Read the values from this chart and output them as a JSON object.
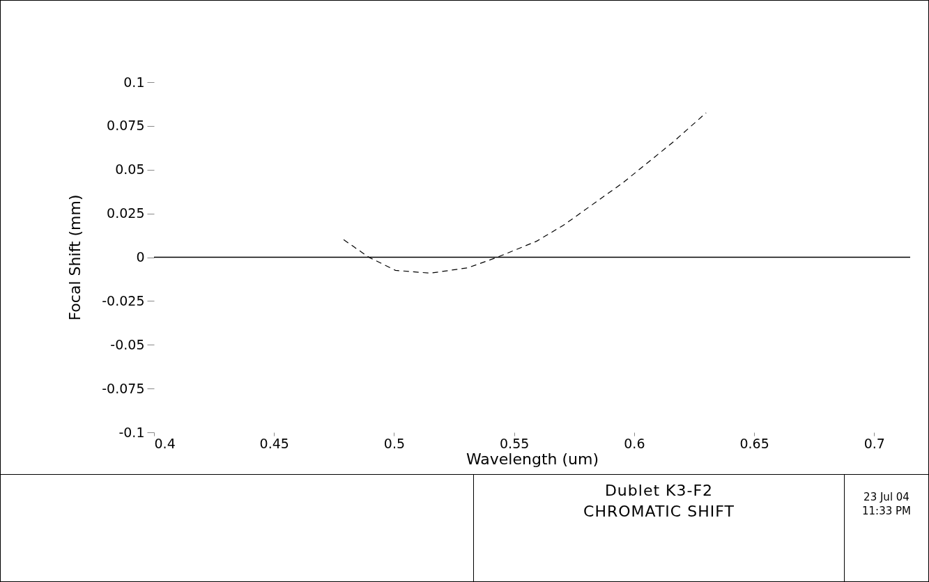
{
  "chart_data": {
    "type": "line",
    "title": "Dublet K3-F2",
    "subtitle": "CHROMATIC SHIFT",
    "xlabel": "Wavelength (um)",
    "ylabel": "Focal Shift (mm)",
    "x": [
      0.479,
      0.4895,
      0.5006,
      0.5151,
      0.5308,
      0.543,
      0.5593,
      0.5706,
      0.5953,
      0.616,
      0.63
    ],
    "series": [
      {
        "color": "#000000",
        "values": [
          0.01,
          0,
          -0.0075,
          -0.0091,
          -0.006,
          0,
          0.0091,
          0.0183,
          0.0425,
          0.0655,
          0.0825
        ]
      }
    ],
    "line_style": "dashed",
    "xlim": [
      0.4,
      0.715
    ],
    "ylim": [
      -0.1,
      0.1
    ],
    "xticks": [
      0.4,
      0.45,
      0.5,
      0.55,
      0.6,
      0.65,
      0.7
    ],
    "yticks": [
      -0.1,
      -0.075,
      -0.05,
      -0.025,
      0,
      0.025,
      0.05,
      0.075,
      0.1
    ],
    "ref_lines": [
      {
        "axis": "y",
        "value": 0
      }
    ],
    "annotations": [
      "23 Jul 04",
      "11:33 PM"
    ]
  }
}
